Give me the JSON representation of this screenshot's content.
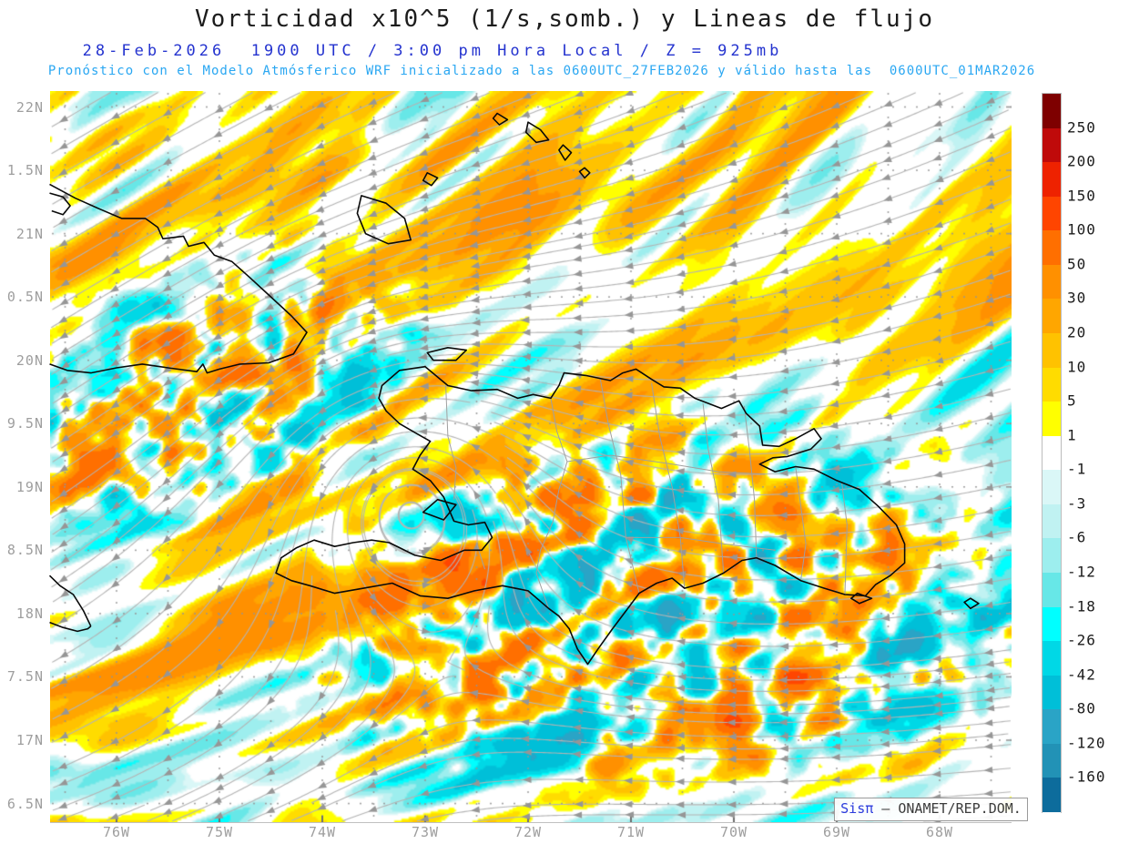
{
  "header": {
    "title": "Vorticidad x10^5 (1/s,somb.) y Lineas de flujo",
    "datetime_line": "28-Feb-2026  1900 UTC / 3:00 pm Hora Local / Z = 925mb",
    "model_line": "Pronóstico con el Modelo Atmósferico WRF inicializado a las 0600UTC_27FEB2026 y válido hasta las  0600UTC_01MAR2026"
  },
  "axes": {
    "lat_labels": [
      "22N",
      "1.5N",
      "21N",
      "0.5N",
      "20N",
      "9.5N",
      "19N",
      "8.5N",
      "18N",
      "7.5N",
      "17N",
      "6.5N"
    ],
    "lon_labels": [
      "76W",
      "75W",
      "74W",
      "73W",
      "72W",
      "71W",
      "70W",
      "69W",
      "68W"
    ]
  },
  "colorbar": {
    "tick_labels": [
      "250",
      "200",
      "150",
      "100",
      "50",
      "30",
      "20",
      "10",
      "5",
      "1",
      "-1",
      "-3",
      "-6",
      "-12",
      "-18",
      "-26",
      "-42",
      "-80",
      "-120",
      "-160"
    ],
    "segment_colors_top_to_bottom": [
      "#7e0000",
      "#bf0a0a",
      "#ee2200",
      "#ff4500",
      "#ff6f00",
      "#ff9000",
      "#ffa600",
      "#ffc200",
      "#ffdc00",
      "#ffff00",
      "#ffffff",
      "#daf7f7",
      "#c0f2f2",
      "#9deeee",
      "#67e7e7",
      "#00ffff",
      "#00d8e6",
      "#00bfd8",
      "#2aa4c6",
      "#2292b6",
      "#0d6c9c"
    ]
  },
  "watermark": {
    "brand": "Sisπ",
    "text": " – ONAMET/REP.DOM."
  },
  "style": {
    "title_color": "#1c1c1c",
    "datetime_color": "#2433cf",
    "model_color": "#2aa7f2",
    "axis_label_color": "#9e9e9e",
    "colorbar_label_color": "#1b1b1b",
    "streamline_color": "#b4b4b4",
    "arrow_color": "#969696",
    "coastline_color": "#0a0a0a",
    "province_border_color": "#a0a0a0",
    "grid_dot_color": "#969696",
    "watermark_brand_color": "#2b3bdc",
    "watermark_text_color": "#3c3c3c"
  },
  "chart_data": {
    "type": "heatmap",
    "subtype": "filled-contour relative vorticity field with streamline overlay on geographic map (Hispaniola / Caribbean)",
    "title": "Vorticidad x10^5 (1/s,somb.) y Lineas de flujo",
    "level_unit": "x10^5 1/s",
    "x_tick_labels": [
      "76W",
      "75W",
      "74W",
      "73W",
      "72W",
      "71W",
      "70W",
      "69W",
      "68W"
    ],
    "y_tick_labels": [
      "22N",
      "1.5N",
      "21N",
      "0.5N",
      "20N",
      "9.5N",
      "19N",
      "8.5N",
      "18N",
      "7.5N",
      "17N",
      "6.5N"
    ],
    "colorbar_levels": [
      250,
      200,
      150,
      100,
      50,
      30,
      20,
      10,
      5,
      1,
      -1,
      -3,
      -6,
      -12,
      -18,
      -26,
      -42,
      -80,
      -120,
      -160
    ],
    "colorbar_colors_top_to_bottom": [
      "#7e0000",
      "#bf0a0a",
      "#ee2200",
      "#ff4500",
      "#ff6f00",
      "#ff9000",
      "#ffa600",
      "#ffc200",
      "#ffdc00",
      "#ffff00",
      "#ffffff",
      "#daf7f7",
      "#c0f2f2",
      "#9deeee",
      "#67e7e7",
      "#00ffff",
      "#00d8e6",
      "#00bfd8",
      "#2aa4c6",
      "#2292b6",
      "#0d6c9c"
    ],
    "legend_position": "right",
    "graticule": "dotted, every 0.5 degree",
    "flow": "trade-wind flow from NE to SW with cyclonic gyre near the Windward Passage"
  }
}
